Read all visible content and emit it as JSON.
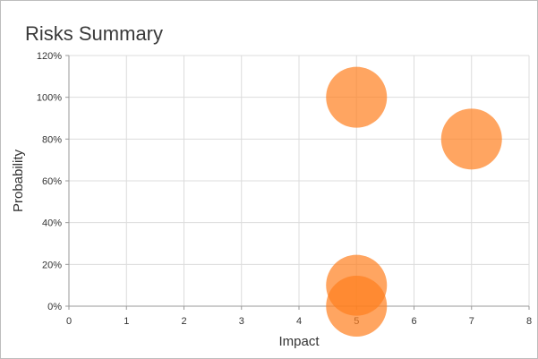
{
  "chart_data": {
    "type": "scatter",
    "title": "Risks Summary",
    "xlabel": "Impact",
    "ylabel": "Probability",
    "xlim": [
      0,
      8
    ],
    "ylim": [
      0,
      1.2
    ],
    "x_ticks": [
      "0",
      "1",
      "2",
      "3",
      "4",
      "5",
      "6",
      "7",
      "8"
    ],
    "y_ticks": [
      "0%",
      "20%",
      "40%",
      "60%",
      "80%",
      "100%",
      "120%"
    ],
    "grid": true,
    "legend": "none",
    "marker_color": "#ff7f1e",
    "series": [
      {
        "points": [
          {
            "x": 5,
            "y": 1.0
          },
          {
            "x": 7,
            "y": 0.8
          },
          {
            "x": 5,
            "y": 0.1
          },
          {
            "x": 5,
            "y": 0.0
          }
        ]
      }
    ]
  }
}
